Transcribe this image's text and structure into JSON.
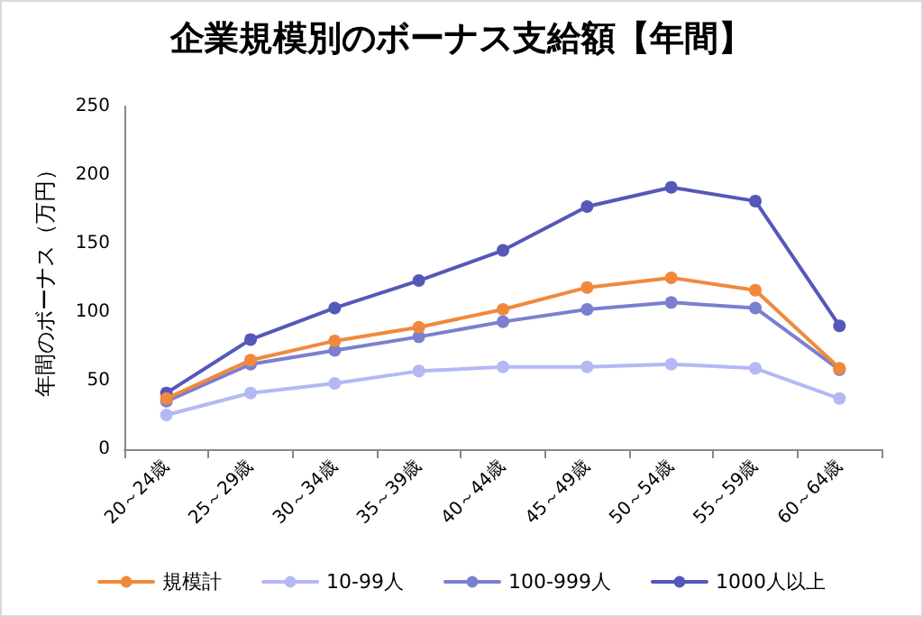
{
  "chart_data": {
    "type": "line",
    "title": "企業規模別のボーナス支給額【年間】",
    "ylabel": "年間のボーナス（万円）",
    "categories": [
      "20～24歳",
      "25～29歳",
      "30～34歳",
      "35～39歳",
      "40～44歳",
      "45～49歳",
      "50～54歳",
      "55～59歳",
      "60～64歳"
    ],
    "series": [
      {
        "name": "規模計",
        "color": "#f0893c",
        "values": [
          37,
          65,
          79,
          89,
          102,
          118,
          125,
          116,
          59
        ]
      },
      {
        "name": "10-99人",
        "color": "#b4b8f4",
        "values": [
          25,
          41,
          48,
          57,
          60,
          60,
          62,
          59,
          37
        ]
      },
      {
        "name": "100-999人",
        "color": "#7b7fd0",
        "values": [
          35,
          62,
          72,
          82,
          93,
          102,
          107,
          103,
          58
        ]
      },
      {
        "name": "1000人以上",
        "color": "#5558b8",
        "values": [
          41,
          80,
          103,
          123,
          145,
          177,
          191,
          181,
          90
        ]
      }
    ],
    "ylim": [
      0,
      250
    ],
    "yticks": [
      0,
      50,
      100,
      150,
      200,
      250
    ],
    "grid": false,
    "legend": "bottom",
    "marker": "circle",
    "line_style": "solid"
  }
}
